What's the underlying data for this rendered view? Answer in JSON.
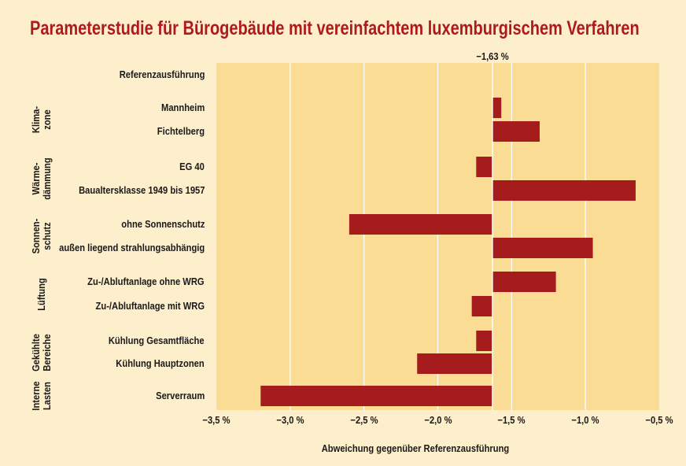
{
  "chart_data": {
    "type": "bar",
    "orientation": "horizontal",
    "title": "Parameterstudie für Bürogebäude mit vereinfachtem luxemburgischem Verfahren",
    "xlabel": "Abweichung gegenüber Referenzausführung",
    "xlim": [
      -3.5,
      -0.5
    ],
    "xticks": [
      -3.5,
      -3.0,
      -2.5,
      -2.0,
      -1.5,
      -1.0,
      -0.5
    ],
    "xtick_labels": [
      "−3,5 %",
      "−3,0 %",
      "−2,5 %",
      "−2,0 %",
      "−1,5 %",
      "−1,0 %",
      "−0,5 %"
    ],
    "grid": "vertical",
    "reference": {
      "value": -1.63,
      "label": "−1,63 %",
      "category": "Referenzausführung"
    },
    "categories": [
      "Mannheim",
      "Fichtelberg",
      "EG 40",
      "Baualtersklasse 1949 bis 1957",
      "ohne Sonnenschutz",
      "außen liegend strahlungsabhängig",
      "Zu-/Abluftanlage ohne WRG",
      "Zu-/Abluftanlage mit WRG",
      "Kühlung Gesamtfläche",
      "Kühlung Hauptzonen",
      "Serverraum"
    ],
    "values": [
      -1.57,
      -1.31,
      -1.74,
      -0.66,
      -2.6,
      -0.95,
      -1.2,
      -1.77,
      -1.74,
      -2.14,
      -3.2
    ],
    "groups": [
      {
        "label": [
          "Klima-",
          "zone"
        ],
        "members": [
          "Mannheim",
          "Fichtelberg"
        ]
      },
      {
        "label": [
          "Wärme-",
          "dämmung"
        ],
        "members": [
          "EG 40",
          "Baualtersklasse 1949 bis 1957"
        ]
      },
      {
        "label": [
          "Sonnen-",
          "schutz"
        ],
        "members": [
          "ohne Sonnenschutz",
          "außen liegend strahlungsabhängig"
        ]
      },
      {
        "label": [
          "Lüftung"
        ],
        "members": [
          "Zu-/Abluftanlage ohne WRG",
          "Zu-/Abluftanlage mit WRG"
        ]
      },
      {
        "label": [
          "Gekühlte",
          "Bereiche"
        ],
        "members": [
          "Kühlung Gesamtfläche",
          "Kühlung Hauptzonen"
        ]
      },
      {
        "label": [
          "Interne",
          "Lasten"
        ],
        "members": [
          "Serverraum"
        ]
      }
    ],
    "colors": {
      "bar": "#a61b1c",
      "plot_background": "#fadc95",
      "page_background": "#fdefcc",
      "title": "#b0191b",
      "grid": "#ffffff"
    }
  }
}
